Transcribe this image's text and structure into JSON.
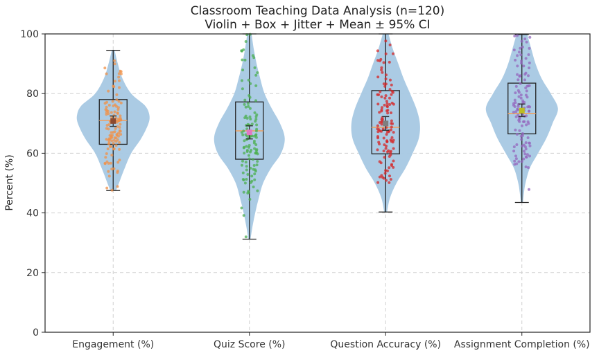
{
  "chart_data": {
    "type": "violin",
    "title": "Classroom Teaching Data Analysis (n=120)",
    "subtitle": "Violin + Box + Jitter + Mean ± 95% CI",
    "xlabel": "",
    "ylabel": "Percent (%)",
    "ylim": [
      0,
      100
    ],
    "yticks": [
      0,
      20,
      40,
      60,
      80,
      100
    ],
    "grid": true,
    "violin_color": "#a6c8e3",
    "box_color": "#222222",
    "median_color": "#f0a060",
    "categories": [
      "Engagement (%)",
      "Quiz Score (%)",
      "Question Accuracy (%)",
      "Assignment Completion (%)"
    ],
    "series": [
      {
        "min": 47.5,
        "q1": 63,
        "median": 71,
        "q3": 78,
        "max": 94.5,
        "mean": 70.8,
        "ci_low": 69,
        "ci_high": 72.5,
        "jitter_color": "#f0924a",
        "mean_color": "#8c4a2f",
        "density": [
          [
            47.5,
            0.08
          ],
          [
            50,
            0.16
          ],
          [
            55,
            0.32
          ],
          [
            60,
            0.5
          ],
          [
            65,
            0.78
          ],
          [
            70,
            0.98
          ],
          [
            73,
            1.0
          ],
          [
            76,
            0.88
          ],
          [
            80,
            0.5
          ],
          [
            85,
            0.26
          ],
          [
            90,
            0.13
          ],
          [
            94.5,
            0.04
          ]
        ]
      },
      {
        "min": 31.2,
        "q1": 58,
        "median": 67.5,
        "q3": 77.2,
        "max": 100,
        "mean": 67,
        "ci_low": 64.8,
        "ci_high": 69.2,
        "jitter_color": "#4caf50",
        "mean_color": "#e377c2",
        "density": [
          [
            31.2,
            0.03
          ],
          [
            35,
            0.08
          ],
          [
            40,
            0.16
          ],
          [
            45,
            0.26
          ],
          [
            50,
            0.38
          ],
          [
            55,
            0.6
          ],
          [
            60,
            0.88
          ],
          [
            65,
            0.98
          ],
          [
            70,
            0.85
          ],
          [
            75,
            0.62
          ],
          [
            80,
            0.42
          ],
          [
            85,
            0.3
          ],
          [
            90,
            0.2
          ],
          [
            95,
            0.12
          ],
          [
            100,
            0.06
          ]
        ]
      },
      {
        "min": 40.3,
        "q1": 59.8,
        "median": 68.7,
        "q3": 81,
        "max": 100,
        "mean": 70,
        "ci_low": 67.7,
        "ci_high": 72.3,
        "jitter_color": "#d62728",
        "mean_color": "#7f7f7f",
        "density": [
          [
            40.3,
            0.04
          ],
          [
            45,
            0.12
          ],
          [
            50,
            0.3
          ],
          [
            55,
            0.55
          ],
          [
            60,
            0.75
          ],
          [
            65,
            0.92
          ],
          [
            70,
            0.95
          ],
          [
            75,
            0.85
          ],
          [
            80,
            0.68
          ],
          [
            85,
            0.5
          ],
          [
            90,
            0.35
          ],
          [
            95,
            0.2
          ],
          [
            100,
            0.08
          ]
        ]
      },
      {
        "min": 43.5,
        "q1": 66.5,
        "median": 73.3,
        "q3": 83.5,
        "max": 99.8,
        "mean": 74.3,
        "ci_low": 72.3,
        "ci_high": 76.5,
        "jitter_color": "#9467bd",
        "mean_color": "#bcbd22",
        "density": [
          [
            43.5,
            0.03
          ],
          [
            47,
            0.06
          ],
          [
            50,
            0.1
          ],
          [
            55,
            0.22
          ],
          [
            60,
            0.45
          ],
          [
            65,
            0.68
          ],
          [
            70,
            0.85
          ],
          [
            75,
            1.0
          ],
          [
            80,
            0.8
          ],
          [
            85,
            0.55
          ],
          [
            90,
            0.38
          ],
          [
            95,
            0.26
          ],
          [
            99.8,
            0.15
          ]
        ]
      }
    ]
  }
}
